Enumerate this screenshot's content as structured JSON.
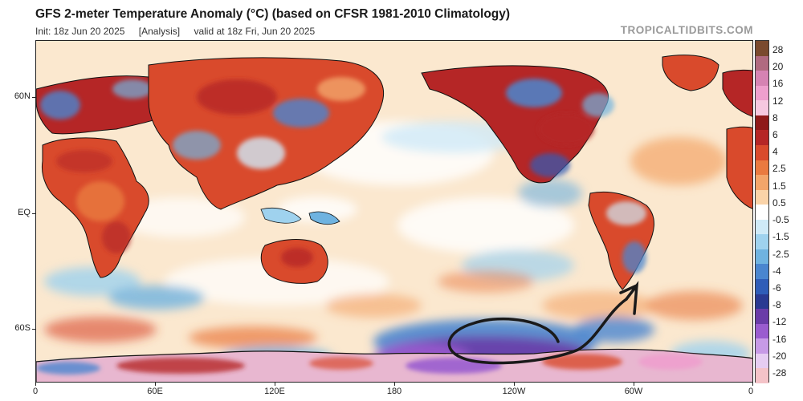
{
  "header": {
    "title": "GFS 2-meter Temperature Anomaly (°C) (based on CFSR 1981-2010 Climatology)",
    "init": "Init: 18z Jun 20 2025",
    "analysis": "[Analysis]",
    "valid": "valid at 18z Fri, Jun 20 2025",
    "brand": "TROPICALTIDBITS.COM"
  },
  "axes": {
    "lat_labels": [
      "60N",
      "EQ",
      "60S"
    ],
    "lon_labels": [
      "0",
      "60E",
      "120E",
      "180",
      "120W",
      "60W",
      "0"
    ]
  },
  "colorbar": {
    "labels": [
      "28",
      "20",
      "16",
      "12",
      "8",
      "6",
      "4",
      "2.5",
      "1.5",
      "0.5",
      "-0.5",
      "-1.5",
      "-2.5",
      "-4",
      "-6",
      "-8",
      "-12",
      "-16",
      "-20",
      "-28"
    ],
    "colors": [
      "#7a4a2e",
      "#b06a80",
      "#d683b3",
      "#ee9fcd",
      "#f6c8e0",
      "#8f1a1a",
      "#b52626",
      "#d94a2c",
      "#ea7a40",
      "#f3a56a",
      "#fad3a8",
      "#ffffff",
      "#cfeaf7",
      "#9fd2ee",
      "#6fb3e0",
      "#4a86cf",
      "#2f5db8",
      "#2a3a92",
      "#6a3ca8",
      "#9a5ccf",
      "#c79ae6",
      "#e6cdf2",
      "#f4c3c8"
    ]
  },
  "map": {
    "ocean_color": "#fbe8cf",
    "annotation_color": "#1a1a1a"
  }
}
